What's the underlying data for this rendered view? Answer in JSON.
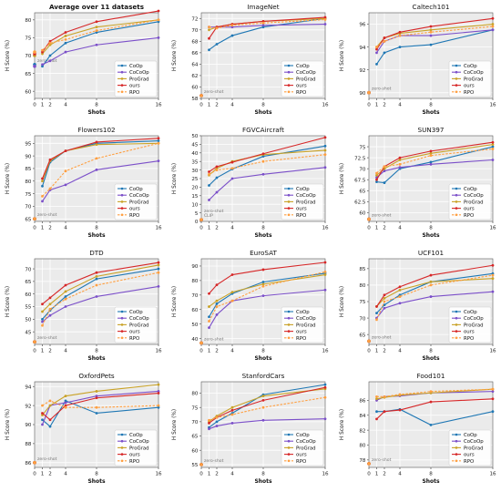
{
  "series_names": [
    "CoOp",
    "CoCoOp",
    "ProGrad",
    "ours",
    "RPO"
  ],
  "series_colors": [
    "#1f77b4",
    "#7b4fc9",
    "#c9a227",
    "#d62728",
    "#ff9f40"
  ],
  "x_label": "Shots",
  "y_label": "H Score (%)",
  "chart_data": [
    {
      "type": "line",
      "title": "Average over 11 datasets",
      "xlabel": "Shots",
      "ylabel": "H Score (%)",
      "x": [
        0,
        1,
        2,
        4,
        8,
        16
      ],
      "ylim": [
        58,
        82
      ],
      "yticks": [
        60,
        65,
        70,
        75,
        80
      ],
      "xticks": [
        "0",
        "1",
        "2",
        "4",
        "8",
        "16"
      ],
      "grid": true,
      "legend": "bottom-right",
      "annotation": "zero-shot",
      "series": [
        {
          "name": "CoOp",
          "values": [
            67.5,
            67.0,
            70.0,
            73.5,
            76.5,
            79.5
          ]
        },
        {
          "name": "CoCoOp",
          "values": [
            67.0,
            67.5,
            68.5,
            71.0,
            73.0,
            75.0
          ]
        },
        {
          "name": "ProGrad",
          "values": [
            70.0,
            70.5,
            73.0,
            75.5,
            78.0,
            80.0
          ]
        },
        {
          "name": "ours",
          "values": [
            70.5,
            71.0,
            74.0,
            76.5,
            79.5,
            82.5
          ]
        },
        {
          "name": "RPO",
          "values": [
            71.0,
            71.5,
            73.5,
            74.5,
            77.0,
            80.0
          ]
        }
      ]
    },
    {
      "type": "line",
      "title": "ImageNet",
      "xlabel": "Shots",
      "ylabel": "H Score (%)",
      "x": [
        0,
        1,
        2,
        4,
        8,
        16
      ],
      "ylim": [
        58,
        73
      ],
      "yticks": [
        58,
        60,
        62,
        64,
        66,
        68,
        70,
        72
      ],
      "xticks": [
        "0",
        "1",
        "2",
        "4",
        "8",
        "16"
      ],
      "grid": true,
      "legend": "bottom-right",
      "annotation": "zero-shot",
      "series": [
        {
          "name": "CoOp",
          "values": [
            58.5,
            66.5,
            67.5,
            69.0,
            70.5,
            72.0
          ]
        },
        {
          "name": "CoCoOp",
          "values": [
            58.5,
            70.5,
            70.5,
            70.5,
            70.8,
            71.0
          ]
        },
        {
          "name": "ProGrad",
          "values": [
            58.5,
            70.0,
            70.5,
            71.0,
            71.5,
            72.0
          ]
        },
        {
          "name": "ours",
          "values": [
            58.5,
            68.5,
            70.5,
            71.0,
            71.5,
            72.2
          ]
        },
        {
          "name": "RPO",
          "values": [
            58.5,
            70.5,
            70.3,
            70.8,
            71.2,
            71.8
          ]
        }
      ]
    },
    {
      "type": "line",
      "title": "Caltech101",
      "xlabel": "Shots",
      "ylabel": "H Score (%)",
      "x": [
        0,
        1,
        2,
        4,
        8,
        16
      ],
      "ylim": [
        89.5,
        97
      ],
      "yticks": [
        90,
        92,
        94,
        96
      ],
      "xticks": [
        "0",
        "1",
        "2",
        "4",
        "8",
        "16"
      ],
      "grid": true,
      "legend": "bottom-right",
      "annotation": "zero-shot",
      "series": [
        {
          "name": "CoOp",
          "values": [
            90.0,
            92.5,
            93.5,
            94.0,
            94.2,
            95.5
          ]
        },
        {
          "name": "CoCoOp",
          "values": [
            90.0,
            93.5,
            94.5,
            95.0,
            95.0,
            95.5
          ]
        },
        {
          "name": "ProGrad",
          "values": [
            90.0,
            94.0,
            94.8,
            95.2,
            95.5,
            96.0
          ]
        },
        {
          "name": "ours",
          "values": [
            90.0,
            93.8,
            94.8,
            95.3,
            95.8,
            96.5
          ]
        },
        {
          "name": "RPO",
          "values": [
            90.0,
            94.0,
            94.5,
            95.0,
            95.3,
            95.8
          ]
        }
      ]
    },
    {
      "type": "line",
      "title": "Flowers102",
      "xlabel": "Shots",
      "ylabel": "H Score (%)",
      "x": [
        0,
        1,
        2,
        4,
        8,
        16
      ],
      "ylim": [
        64,
        98
      ],
      "yticks": [
        65,
        70,
        75,
        80,
        85,
        90,
        95
      ],
      "xticks": [
        "0",
        "1",
        "2",
        "4",
        "8",
        "16"
      ],
      "grid": true,
      "legend": "bottom-right",
      "annotation": "zero-shot",
      "series": [
        {
          "name": "CoOp",
          "values": [
            65.0,
            78.0,
            87.5,
            92.0,
            95.0,
            96.0
          ]
        },
        {
          "name": "CoCoOp",
          "values": [
            65.0,
            72.0,
            76.5,
            78.5,
            84.5,
            88.0
          ]
        },
        {
          "name": "ProGrad",
          "values": [
            65.0,
            80.0,
            88.0,
            92.0,
            94.5,
            95.0
          ]
        },
        {
          "name": "ours",
          "values": [
            65.0,
            81.0,
            88.5,
            92.0,
            95.5,
            97.0
          ]
        },
        {
          "name": "RPO",
          "values": [
            65.0,
            74.0,
            77.0,
            84.0,
            89.0,
            95.0
          ]
        }
      ]
    },
    {
      "type": "line",
      "title": "FGVCAircraft",
      "xlabel": "Shots",
      "ylabel": "H Score (%)",
      "x": [
        0,
        1,
        2,
        4,
        8,
        16
      ],
      "ylim": [
        0,
        50
      ],
      "yticks": [
        0,
        5,
        10,
        15,
        20,
        25,
        30,
        35,
        40,
        45,
        50
      ],
      "xticks": [
        "0",
        "1",
        "2",
        "4",
        "8",
        "16"
      ],
      "grid": true,
      "legend": "bottom-right",
      "annotation": "zero-shot CLIP",
      "series": [
        {
          "name": "CoOp",
          "values": [
            1.0,
            21.0,
            25.5,
            30.5,
            38.0,
            44.0
          ]
        },
        {
          "name": "CoCoOp",
          "values": [
            1.0,
            12.5,
            17.0,
            25.0,
            27.5,
            31.5
          ]
        },
        {
          "name": "ProGrad",
          "values": [
            1.0,
            27.0,
            31.0,
            35.0,
            39.0,
            41.5
          ]
        },
        {
          "name": "ours",
          "values": [
            1.0,
            29.0,
            32.0,
            34.5,
            39.5,
            49.0
          ]
        },
        {
          "name": "RPO",
          "values": [
            1.0,
            27.5,
            30.0,
            31.0,
            35.0,
            39.0
          ]
        }
      ]
    },
    {
      "type": "line",
      "title": "SUN397",
      "xlabel": "Shots",
      "ylabel": "H Score (%)",
      "x": [
        0,
        1,
        2,
        4,
        8,
        16
      ],
      "ylim": [
        58,
        77.5
      ],
      "yticks": [
        60.0,
        62.5,
        65.0,
        67.5,
        70.0,
        72.5,
        75.0
      ],
      "xticks": [
        "0",
        "1",
        "2",
        "4",
        "8",
        "16"
      ],
      "grid": true,
      "legend": "bottom-right",
      "annotation": "zero-shot",
      "series": [
        {
          "name": "CoOp",
          "values": [
            58.5,
            67.0,
            66.8,
            70.0,
            71.5,
            75.0
          ]
        },
        {
          "name": "CoCoOp",
          "values": [
            58.5,
            68.0,
            69.5,
            70.3,
            71.0,
            72.0
          ]
        },
        {
          "name": "ProGrad",
          "values": [
            58.5,
            68.5,
            70.0,
            72.0,
            73.5,
            75.5
          ]
        },
        {
          "name": "ours",
          "values": [
            58.5,
            67.5,
            70.5,
            72.5,
            74.0,
            76.0
          ]
        },
        {
          "name": "RPO",
          "values": [
            58.5,
            69.0,
            70.5,
            71.0,
            73.0,
            74.5
          ]
        }
      ]
    },
    {
      "type": "line",
      "title": "DTD",
      "xlabel": "Shots",
      "ylabel": "H Score (%)",
      "x": [
        0,
        1,
        2,
        4,
        8,
        16
      ],
      "ylim": [
        40,
        74
      ],
      "yticks": [
        45,
        50,
        55,
        60,
        65,
        70
      ],
      "xticks": [
        "0",
        "1",
        "2",
        "4",
        "8",
        "16"
      ],
      "grid": true,
      "legend": "bottom-right",
      "annotation": "zero-shot",
      "series": [
        {
          "name": "CoOp",
          "values": [
            41.0,
            50.0,
            53.5,
            59.0,
            66.0,
            70.0
          ]
        },
        {
          "name": "CoCoOp",
          "values": [
            41.0,
            49.0,
            51.5,
            55.0,
            59.0,
            63.0
          ]
        },
        {
          "name": "ProGrad",
          "values": [
            41.0,
            53.0,
            56.0,
            61.0,
            67.0,
            71.5
          ]
        },
        {
          "name": "ours",
          "values": [
            41.0,
            56.0,
            58.5,
            63.5,
            68.5,
            72.5
          ]
        },
        {
          "name": "RPO",
          "values": [
            41.0,
            47.5,
            54.0,
            58.0,
            63.5,
            68.5
          ]
        }
      ]
    },
    {
      "type": "line",
      "title": "EuroSAT",
      "xlabel": "Shots",
      "ylabel": "H Score (%)",
      "x": [
        0,
        1,
        2,
        4,
        8,
        16
      ],
      "ylim": [
        36,
        95
      ],
      "yticks": [
        40,
        50,
        60,
        70,
        80,
        90
      ],
      "xticks": [
        "0",
        "1",
        "2",
        "4",
        "8",
        "16"
      ],
      "grid": true,
      "legend": "bottom-right",
      "annotation": "zero-shot",
      "series": [
        {
          "name": "CoOp",
          "values": [
            37.0,
            55.0,
            64.0,
            71.0,
            79.0,
            85.0
          ]
        },
        {
          "name": "CoCoOp",
          "values": [
            37.0,
            47.5,
            56.5,
            66.0,
            69.5,
            73.5
          ]
        },
        {
          "name": "ProGrad",
          "values": [
            37.0,
            62.0,
            66.0,
            72.0,
            77.5,
            84.0
          ]
        },
        {
          "name": "ours",
          "values": [
            37.0,
            71.0,
            77.0,
            84.0,
            87.5,
            92.5
          ]
        },
        {
          "name": "RPO",
          "values": [
            37.0,
            52.0,
            62.0,
            66.0,
            76.0,
            86.0
          ]
        }
      ]
    },
    {
      "type": "line",
      "title": "UCF101",
      "xlabel": "Shots",
      "ylabel": "H Score (%)",
      "x": [
        0,
        1,
        2,
        4,
        8,
        16
      ],
      "ylim": [
        62,
        88
      ],
      "yticks": [
        65,
        70,
        75,
        80,
        85
      ],
      "xticks": [
        "0",
        "1",
        "2",
        "4",
        "8",
        "16"
      ],
      "grid": true,
      "legend": "bottom-right",
      "annotation": "zero-shot",
      "series": [
        {
          "name": "CoOp",
          "values": [
            63.0,
            71.5,
            74.0,
            77.0,
            81.0,
            83.5
          ]
        },
        {
          "name": "CoCoOp",
          "values": [
            63.0,
            70.0,
            73.0,
            74.5,
            76.5,
            78.0
          ]
        },
        {
          "name": "ProGrad",
          "values": [
            63.0,
            73.5,
            76.0,
            78.5,
            81.0,
            82.0
          ]
        },
        {
          "name": "ours",
          "values": [
            63.0,
            73.5,
            77.0,
            79.5,
            83.0,
            86.0
          ]
        },
        {
          "name": "RPO",
          "values": [
            63.0,
            69.5,
            75.0,
            76.5,
            80.0,
            83.0
          ]
        }
      ]
    },
    {
      "type": "line",
      "title": "OxfordPets",
      "xlabel": "Shots",
      "ylabel": "H Score (%)",
      "x": [
        0,
        1,
        2,
        4,
        8,
        16
      ],
      "ylim": [
        85.5,
        94.5
      ],
      "yticks": [
        86,
        88,
        90,
        92,
        94
      ],
      "xticks": [
        "0",
        "1",
        "2",
        "4",
        "8",
        "16"
      ],
      "grid": true,
      "legend": "bottom-right",
      "annotation": "zero-shot",
      "series": [
        {
          "name": "CoOp",
          "values": [
            86.0,
            90.5,
            89.8,
            92.5,
            91.2,
            91.8
          ]
        },
        {
          "name": "CoCoOp",
          "values": [
            86.0,
            90.0,
            92.0,
            92.3,
            93.0,
            93.5
          ]
        },
        {
          "name": "ProGrad",
          "values": [
            86.0,
            91.0,
            92.0,
            93.0,
            93.5,
            94.2
          ]
        },
        {
          "name": "ours",
          "values": [
            86.0,
            91.2,
            90.5,
            92.0,
            92.8,
            93.3
          ]
        },
        {
          "name": "RPO",
          "values": [
            86.0,
            92.0,
            92.5,
            91.8,
            91.8,
            92.0
          ]
        }
      ]
    },
    {
      "type": "line",
      "title": "StanfordCars",
      "xlabel": "Shots",
      "ylabel": "H Score (%)",
      "x": [
        0,
        1,
        2,
        4,
        8,
        16
      ],
      "ylim": [
        54,
        84
      ],
      "yticks": [
        55,
        60,
        65,
        70,
        75,
        80
      ],
      "xticks": [
        "0",
        "1",
        "2",
        "4",
        "8",
        "16"
      ],
      "grid": true,
      "legend": "bottom-right",
      "annotation": "zero-shot",
      "series": [
        {
          "name": "CoOp",
          "values": [
            55.0,
            68.0,
            70.0,
            73.0,
            79.5,
            83.0
          ]
        },
        {
          "name": "CoCoOp",
          "values": [
            55.0,
            67.5,
            68.5,
            69.5,
            70.5,
            71.0
          ]
        },
        {
          "name": "ProGrad",
          "values": [
            55.0,
            70.0,
            72.0,
            75.0,
            79.0,
            81.5
          ]
        },
        {
          "name": "ours",
          "values": [
            55.0,
            69.5,
            71.5,
            74.0,
            77.5,
            82.0
          ]
        },
        {
          "name": "RPO",
          "values": [
            55.0,
            70.5,
            71.5,
            72.5,
            75.0,
            78.5
          ]
        }
      ]
    },
    {
      "type": "line",
      "title": "Food101",
      "xlabel": "Shots",
      "ylabel": "H Score (%)",
      "x": [
        0,
        1,
        2,
        4,
        8,
        16
      ],
      "ylim": [
        77,
        88.5
      ],
      "yticks": [
        78,
        80,
        82,
        84,
        86
      ],
      "xticks": [
        "0",
        "1",
        "2",
        "4",
        "8",
        "16"
      ],
      "grid": true,
      "legend": "bottom-right",
      "annotation": "zero-shot",
      "series": [
        {
          "name": "CoOp",
          "values": [
            77.5,
            84.5,
            84.5,
            84.8,
            82.7,
            84.5
          ]
        },
        {
          "name": "CoCoOp",
          "values": [
            77.5,
            86.0,
            86.5,
            86.6,
            87.0,
            87.2
          ]
        },
        {
          "name": "ProGrad",
          "values": [
            77.5,
            86.2,
            86.4,
            86.7,
            87.0,
            87.5
          ]
        },
        {
          "name": "ours",
          "values": [
            77.5,
            83.5,
            84.5,
            84.7,
            85.8,
            86.2
          ]
        },
        {
          "name": "RPO",
          "values": [
            77.5,
            86.5,
            86.5,
            86.8,
            87.2,
            87.5
          ]
        }
      ]
    }
  ]
}
